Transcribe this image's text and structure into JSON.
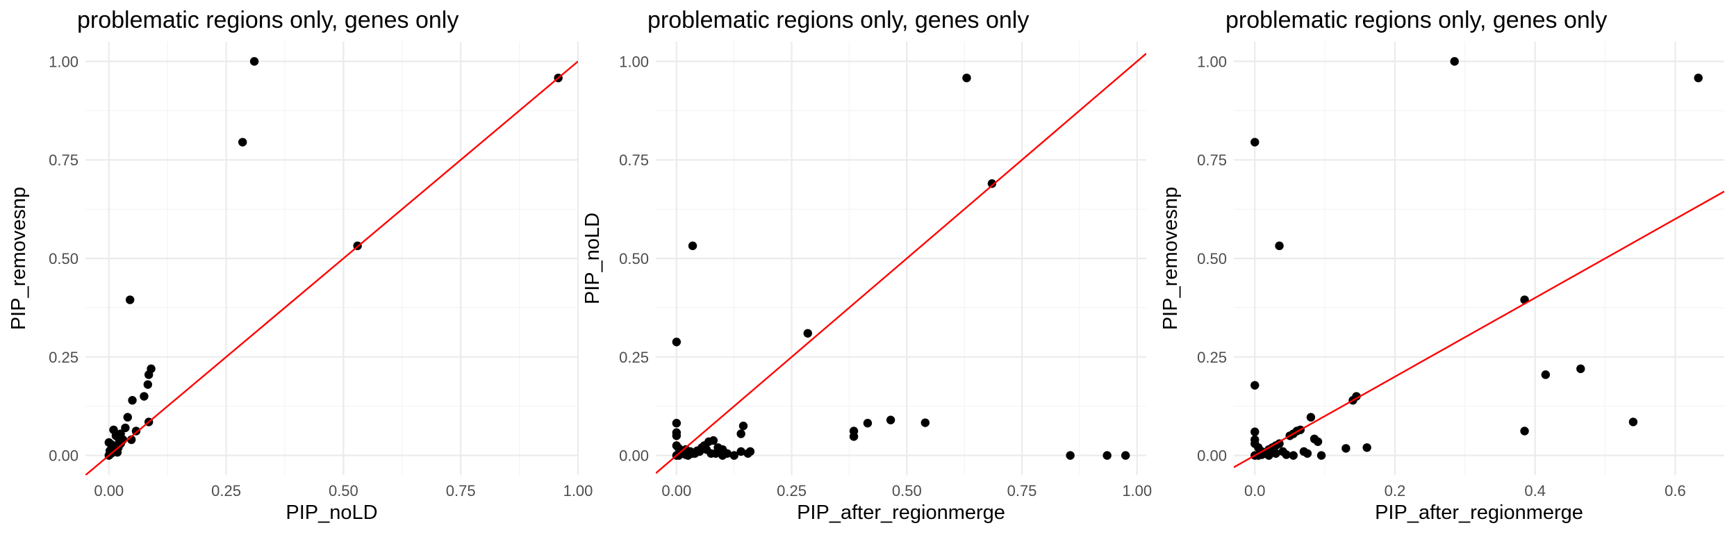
{
  "chart_data": [
    {
      "type": "scatter",
      "title": "problematic regions only, genes only",
      "xlabel": "PIP_noLD",
      "ylabel": "PIP_removesnp",
      "xlim": [
        -0.05,
        1.0
      ],
      "ylim": [
        -0.05,
        1.05
      ],
      "xticks": [
        0.0,
        0.25,
        0.5,
        0.75,
        1.0
      ],
      "xtick_labels": [
        "0.00",
        "0.25",
        "0.50",
        "0.75",
        "1.00"
      ],
      "yticks": [
        0.0,
        0.25,
        0.5,
        0.75,
        1.0
      ],
      "ytick_labels": [
        "0.00",
        "0.25",
        "0.50",
        "0.75",
        "1.00"
      ],
      "grid": true,
      "reference_line": {
        "slope": 1,
        "intercept": 0,
        "color": "#ff0000"
      },
      "points": [
        [
          0.31,
          1.0
        ],
        [
          0.285,
          0.795
        ],
        [
          0.958,
          0.958
        ],
        [
          0.53,
          0.532
        ],
        [
          0.045,
          0.395
        ],
        [
          0.09,
          0.22
        ],
        [
          0.085,
          0.205
        ],
        [
          0.083,
          0.18
        ],
        [
          0.075,
          0.15
        ],
        [
          0.05,
          0.14
        ],
        [
          0.04,
          0.097
        ],
        [
          0.085,
          0.085
        ],
        [
          0.058,
          0.062
        ],
        [
          0.048,
          0.04
        ],
        [
          0.035,
          0.07
        ],
        [
          0.01,
          0.065
        ],
        [
          0.025,
          0.055
        ],
        [
          0.015,
          0.05
        ],
        [
          0.02,
          0.045
        ],
        [
          0.03,
          0.04
        ],
        [
          0.0,
          0.033
        ],
        [
          0.005,
          0.028
        ],
        [
          0.015,
          0.025
        ],
        [
          0.02,
          0.02
        ],
        [
          0.008,
          0.015
        ],
        [
          0.012,
          0.01
        ],
        [
          0.0,
          0.0
        ],
        [
          0.005,
          0.005
        ],
        [
          0.002,
          0.012
        ],
        [
          0.018,
          0.008
        ],
        [
          0.025,
          0.03
        ],
        [
          0.01,
          0.02
        ]
      ]
    },
    {
      "type": "scatter",
      "title": "problematic regions only, genes only",
      "xlabel": "PIP_after_regionmerge",
      "ylabel": "PIP_noLD",
      "xlim": [
        -0.045,
        1.02
      ],
      "ylim": [
        -0.05,
        1.05
      ],
      "xticks": [
        0.0,
        0.25,
        0.5,
        0.75,
        1.0
      ],
      "xtick_labels": [
        "0.00",
        "0.25",
        "0.50",
        "0.75",
        "1.00"
      ],
      "yticks": [
        0.0,
        0.25,
        0.5,
        0.75,
        1.0
      ],
      "ytick_labels": [
        "0.00",
        "0.25",
        "0.50",
        "0.75",
        "1.00"
      ],
      "grid": true,
      "reference_line": {
        "slope": 1,
        "intercept": 0,
        "color": "#ff0000"
      },
      "points": [
        [
          0.63,
          0.958
        ],
        [
          0.685,
          0.69
        ],
        [
          0.035,
          0.532
        ],
        [
          0.0,
          0.288
        ],
        [
          0.285,
          0.31
        ],
        [
          0.385,
          0.062
        ],
        [
          0.385,
          0.048
        ],
        [
          0.415,
          0.082
        ],
        [
          0.465,
          0.09
        ],
        [
          0.54,
          0.083
        ],
        [
          0.855,
          0.0
        ],
        [
          0.935,
          0.0
        ],
        [
          0.975,
          0.0
        ],
        [
          0.0,
          0.082
        ],
        [
          0.0,
          0.058
        ],
        [
          0.0,
          0.05
        ],
        [
          0.0,
          0.025
        ],
        [
          0.005,
          0.018
        ],
        [
          0.01,
          0.01
        ],
        [
          0.02,
          0.015
        ],
        [
          0.03,
          0.01
        ],
        [
          0.04,
          0.005
        ],
        [
          0.05,
          0.01
        ],
        [
          0.06,
          0.025
        ],
        [
          0.07,
          0.035
        ],
        [
          0.08,
          0.038
        ],
        [
          0.09,
          0.02
        ],
        [
          0.1,
          0.015
        ],
        [
          0.11,
          0.005
        ],
        [
          0.14,
          0.055
        ],
        [
          0.145,
          0.075
        ],
        [
          0.16,
          0.01
        ],
        [
          0.155,
          0.005
        ],
        [
          0.14,
          0.01
        ],
        [
          0.125,
          0.0
        ],
        [
          0.1,
          0.0
        ],
        [
          0.085,
          0.005
        ],
        [
          0.065,
          0.015
        ],
        [
          0.055,
          0.02
        ],
        [
          0.045,
          0.012
        ],
        [
          0.035,
          0.005
        ],
        [
          0.025,
          0.0
        ],
        [
          0.015,
          0.005
        ],
        [
          0.0,
          0.0
        ],
        [
          0.005,
          0.0
        ],
        [
          0.02,
          0.002
        ],
        [
          0.075,
          0.005
        ]
      ]
    },
    {
      "type": "scatter",
      "title": "problematic regions only, genes only",
      "xlabel": "PIP_after_regionmerge",
      "ylabel": "PIP_removesnp",
      "xlim": [
        -0.03,
        0.67
      ],
      "ylim": [
        -0.05,
        1.05
      ],
      "xticks": [
        0.0,
        0.2,
        0.4,
        0.6
      ],
      "xtick_labels": [
        "0.0",
        "0.2",
        "0.4",
        "0.6"
      ],
      "yticks": [
        0.0,
        0.25,
        0.5,
        0.75,
        1.0
      ],
      "ytick_labels": [
        "0.00",
        "0.25",
        "0.50",
        "0.75",
        "1.00"
      ],
      "grid": true,
      "reference_line": {
        "slope": 1,
        "intercept": 0,
        "color": "#ff0000"
      },
      "points": [
        [
          0.285,
          1.0
        ],
        [
          0.633,
          0.958
        ],
        [
          0.0,
          0.795
        ],
        [
          0.035,
          0.532
        ],
        [
          0.385,
          0.395
        ],
        [
          0.465,
          0.22
        ],
        [
          0.415,
          0.205
        ],
        [
          0.0,
          0.178
        ],
        [
          0.145,
          0.15
        ],
        [
          0.14,
          0.14
        ],
        [
          0.54,
          0.085
        ],
        [
          0.385,
          0.062
        ],
        [
          0.08,
          0.097
        ],
        [
          0.085,
          0.042
        ],
        [
          0.09,
          0.035
        ],
        [
          0.065,
          0.065
        ],
        [
          0.06,
          0.062
        ],
        [
          0.055,
          0.055
        ],
        [
          0.05,
          0.05
        ],
        [
          0.13,
          0.018
        ],
        [
          0.16,
          0.02
        ],
        [
          0.095,
          0.0
        ],
        [
          0.07,
          0.01
        ],
        [
          0.075,
          0.005
        ],
        [
          0.045,
          0.002
        ],
        [
          0.055,
          0.0
        ],
        [
          0.0,
          0.06
        ],
        [
          0.0,
          0.04
        ],
        [
          0.0,
          0.03
        ],
        [
          0.005,
          0.02
        ],
        [
          0.01,
          0.01
        ],
        [
          0.015,
          0.005
        ],
        [
          0.02,
          0.015
        ],
        [
          0.025,
          0.02
        ],
        [
          0.03,
          0.025
        ],
        [
          0.035,
          0.03
        ],
        [
          0.04,
          0.01
        ],
        [
          0.0,
          0.0
        ],
        [
          0.005,
          0.0
        ],
        [
          0.02,
          0.0
        ],
        [
          0.03,
          0.005
        ],
        [
          0.01,
          0.002
        ]
      ]
    }
  ]
}
